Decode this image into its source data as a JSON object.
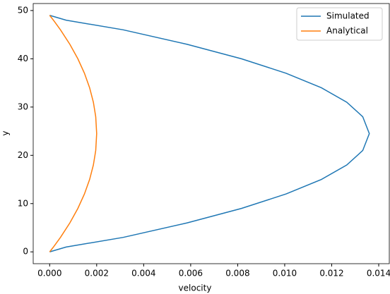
{
  "chart_data": {
    "type": "line",
    "orientation": "horizontal",
    "xlabel": "velocity",
    "ylabel": "y",
    "x": [
      0,
      1,
      3,
      6,
      9,
      12,
      15,
      18,
      21,
      24.5,
      28,
      31,
      34,
      37,
      40,
      43,
      46,
      48,
      49
    ],
    "series": [
      {
        "name": "Simulated",
        "color": "#1f77b4",
        "values": [
          0,
          0.0007,
          0.00313,
          0.00585,
          0.00816,
          0.01006,
          0.01156,
          0.01264,
          0.01332,
          0.0136,
          0.01332,
          0.01264,
          0.01156,
          0.01006,
          0.00816,
          0.00585,
          0.00313,
          0.0007,
          0
        ]
      },
      {
        "name": "Analytical",
        "color": "#ff7f0e",
        "values": [
          0,
          0.00016,
          0.00046,
          0.00086,
          0.0012,
          0.00148,
          0.0017,
          0.00186,
          0.00196,
          0.002,
          0.00196,
          0.00186,
          0.0017,
          0.00148,
          0.0012,
          0.00086,
          0.00046,
          0.00016,
          0
        ]
      }
    ],
    "xlim": [
      -0.0007,
      0.01445
    ],
    "xticks": [
      {
        "value": 0,
        "label": "0.000"
      },
      {
        "value": 0.002,
        "label": "0.002"
      },
      {
        "value": 0.004,
        "label": "0.004"
      },
      {
        "value": 0.006,
        "label": "0.006"
      },
      {
        "value": 0.008,
        "label": "0.008"
      },
      {
        "value": 0.01,
        "label": "0.010"
      },
      {
        "value": 0.012,
        "label": "0.012"
      },
      {
        "value": 0.014,
        "label": "0.014"
      }
    ],
    "ylim": [
      -2.45,
      51.45
    ],
    "yticks": [
      0,
      10,
      20,
      30,
      40,
      50
    ],
    "legend": "upper right"
  }
}
